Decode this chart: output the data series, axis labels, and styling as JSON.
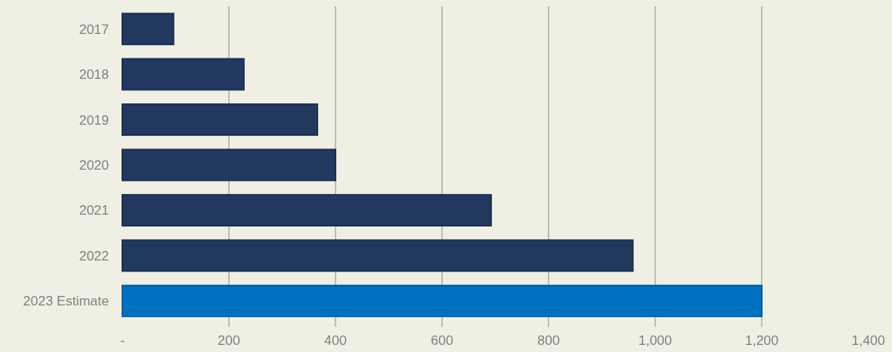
{
  "chart_data": {
    "type": "bar",
    "orientation": "horizontal",
    "categories": [
      "2017",
      "2018",
      "2019",
      "2020",
      "2021",
      "2022",
      "2023 Estimate"
    ],
    "values": [
      96,
      228,
      366,
      400,
      692,
      958,
      1200
    ],
    "colors": [
      "#22385f",
      "#22385f",
      "#22385f",
      "#22385f",
      "#22385f",
      "#22385f",
      "#0070c0"
    ],
    "xlim": [
      0,
      1400
    ],
    "xticks": [
      {
        "value": 0,
        "label": "-"
      },
      200,
      400,
      600,
      800,
      {
        "value": 1000,
        "label": "1,000"
      },
      {
        "value": 1200,
        "label": "1,200"
      },
      {
        "value": 1400,
        "label": "1,400"
      }
    ],
    "grid": "x"
  }
}
